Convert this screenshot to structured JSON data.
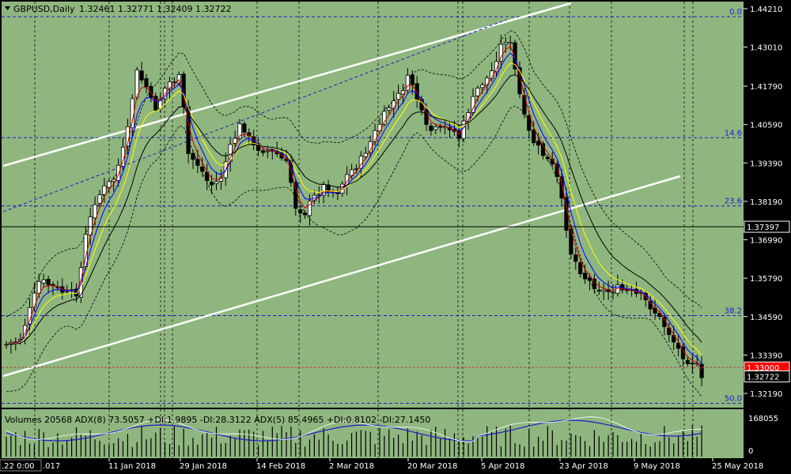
{
  "header": {
    "symbol": "GBPUSD,Daily",
    "ohlc": "1.32461 1.32771 1.32409 1.32722"
  },
  "indicator_label": "Volumes 20568  ADX(8) 73.5057  +DI:1.9895  -DI:28.3122  ADX(5) 85.4965  +DI:0.8102  -DI:27.1450",
  "colors": {
    "background": "#8fb67f",
    "grid": "#000000",
    "fib": "#1d1dc8",
    "channel": "#ffffff",
    "ema_fast": "#d40000",
    "ema_mid": "#0000ff",
    "ema_slow": "#ffff00",
    "ema_long": "#000000",
    "price_tag": "#ff0000",
    "hline_tag": "#000000"
  },
  "chart_data": {
    "type": "candlestick",
    "symbol": "GBPUSD",
    "timeframe": "Daily",
    "price_axis": {
      "min": 1.316,
      "max": 1.445,
      "ticks": [
        "1.44210",
        "1.43010",
        "1.41790",
        "1.40590",
        "1.39390",
        "1.38190",
        "1.36990",
        "1.35790",
        "1.34590",
        "1.33390",
        "1.32190"
      ]
    },
    "date_labels": [
      ".22 0:00",
      ".017",
      "11 Jan 2018",
      "29 Jan 2018",
      "14 Feb 2018",
      "2 Mar 2018",
      "20 Mar 2018",
      "5 Apr 2018",
      "23 Apr 2018",
      "9 May 2018",
      "25 May 2018"
    ],
    "fib_levels": [
      {
        "label": "0.0",
        "price": 1.4396
      },
      {
        "label": "14.6",
        "price": 1.4018
      },
      {
        "label": "23.6",
        "price": 1.3805
      },
      {
        "label": "38.2",
        "price": 1.3462
      },
      {
        "label": "50.0",
        "price": 1.3188
      }
    ],
    "horizontal_line": {
      "price": 1.37397,
      "label": "1.37397"
    },
    "price_line": {
      "price": 1.33,
      "label": "1.33000"
    },
    "last_price": {
      "price": 1.32722,
      "label": "1.32722"
    },
    "indicator_axis": [
      "168055",
      "0"
    ]
  }
}
